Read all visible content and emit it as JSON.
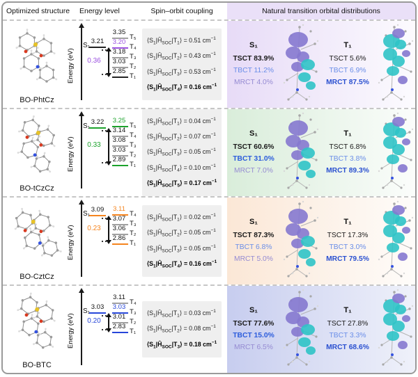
{
  "header": {
    "col_structure": "Optimized structure",
    "col_energy": "Energy level",
    "col_soc": "Spin–orbit coupling",
    "col_nto": "Natural transition orbital distributions"
  },
  "energy_axis_label": "Energy (eV)",
  "formula": {
    "open": "⟨S",
    "s_sub": "1",
    "h": "|Ĥ",
    "op": "SOC",
    "t": "|T",
    "close_eq": "⟩ = ",
    "unit": " cm",
    "exp": "−1"
  },
  "rows": [
    {
      "name": "BO-PhtCz",
      "accent": "#9B51E0",
      "s1_label": "S₁",
      "s1_value": "3.21",
      "s1_line_color": "#222222",
      "s1_align": 1,
      "delta_est": "0.36",
      "t_levels": [
        {
          "label": "T₅",
          "value": "3.35",
          "line_color": "#a0a0a0",
          "value_color": "#111111"
        },
        {
          "label": "T₄",
          "value": "3.20",
          "line_color": "#9B51E0",
          "value_color": "#9B51E0"
        },
        {
          "label": "T₃",
          "value": "3.18",
          "line_color": "#a0a0a0",
          "value_color": "#111111"
        },
        {
          "label": "T₂",
          "value": "3.03",
          "line_color": "#a0a0a0",
          "value_color": "#111111"
        },
        {
          "label": "T₁",
          "value": "2.85",
          "line_color": "#222222",
          "value_color": "#111111"
        }
      ],
      "soc": [
        {
          "t": "1",
          "value": "0.51",
          "bold": false
        },
        {
          "t": "2",
          "value": "0.43",
          "bold": false
        },
        {
          "t": "3",
          "value": "0.53",
          "bold": false
        },
        {
          "t": "4",
          "value": "0.16",
          "bold": true
        }
      ],
      "nto_from": "#E7DBF7",
      "nto_to": "#FCFBFE",
      "nto_s1": {
        "title": "S₁",
        "lines": [
          {
            "text": "TSCT 83.9%",
            "color": "#1a1a1a",
            "bold": true
          },
          {
            "text": "TBCT 11.2%",
            "color": "#6A8EE8",
            "bold": false
          },
          {
            "text": "MRCT 4.0%",
            "color": "#958BD2",
            "bold": false
          }
        ]
      },
      "nto_t1": {
        "title": "T₁",
        "lines": [
          {
            "text": "TSCT 5.6%",
            "color": "#1a1a1a",
            "bold": false
          },
          {
            "text": "TBCT 6.9%",
            "color": "#6A8EE8",
            "bold": false
          },
          {
            "text": "MRCT 87.5%",
            "color": "#2A50D0",
            "bold": true
          }
        ]
      }
    },
    {
      "name": "BO-tCzCz",
      "accent": "#1CA32C",
      "s1_label": "S₁",
      "s1_value": "3.22",
      "s1_line_color": "#1CA32C",
      "s1_align": 0,
      "delta_est": "0.33",
      "t_levels": [
        {
          "label": "T₅",
          "value": "3.25",
          "line_color": "#1CA32C",
          "value_color": "#1CA32C"
        },
        {
          "label": "T₄",
          "value": "3.14",
          "line_color": "#a0a0a0",
          "value_color": "#111111"
        },
        {
          "label": "T₃",
          "value": "3.08",
          "line_color": "#a0a0a0",
          "value_color": "#111111"
        },
        {
          "label": "T₂",
          "value": "3.03",
          "line_color": "#a0a0a0",
          "value_color": "#111111"
        },
        {
          "label": "T₁",
          "value": "2.89",
          "line_color": "#1CA32C",
          "value_color": "#111111"
        }
      ],
      "soc": [
        {
          "t": "1",
          "value": "0.04",
          "bold": false
        },
        {
          "t": "2",
          "value": "0.07",
          "bold": false
        },
        {
          "t": "3",
          "value": "0.05",
          "bold": false
        },
        {
          "t": "4",
          "value": "0.10",
          "bold": false
        },
        {
          "t": "5",
          "value": "0.17",
          "bold": true
        }
      ],
      "nto_from": "#D9EDDA",
      "nto_to": "#FBFDFB",
      "nto_s1": {
        "title": "S₁",
        "lines": [
          {
            "text": "TSCT 60.6%",
            "color": "#1a1a1a",
            "bold": true
          },
          {
            "text": "TBCT 31.0%",
            "color": "#2B5CDC",
            "bold": true
          },
          {
            "text": "MRCT 7.0%",
            "color": "#958BD2",
            "bold": false
          }
        ]
      },
      "nto_t1": {
        "title": "T₁",
        "lines": [
          {
            "text": "TSCT 6.8%",
            "color": "#1a1a1a",
            "bold": false
          },
          {
            "text": "TBCT 3.8%",
            "color": "#6A8EE8",
            "bold": false
          },
          {
            "text": "MRCT 89.3%",
            "color": "#2A50D0",
            "bold": true
          }
        ]
      }
    },
    {
      "name": "BO-CztCz",
      "accent": "#F5841E",
      "s1_label": "S₁",
      "s1_value": "3.09",
      "s1_line_color": "#F5841E",
      "s1_align": 0,
      "delta_est": "0.23",
      "t_levels": [
        {
          "label": "T₄",
          "value": "3.11",
          "line_color": "#F5841E",
          "value_color": "#F5841E"
        },
        {
          "label": "T₃",
          "value": "3.07",
          "line_color": "#a0a0a0",
          "value_color": "#111111"
        },
        {
          "label": "T₂",
          "value": "3.06",
          "line_color": "#a0a0a0",
          "value_color": "#111111"
        },
        {
          "label": "T₁",
          "value": "2.86",
          "line_color": "#F5841E",
          "value_color": "#111111"
        }
      ],
      "soc": [
        {
          "t": "1",
          "value": "0.02",
          "bold": false
        },
        {
          "t": "2",
          "value": "0.05",
          "bold": false
        },
        {
          "t": "3",
          "value": "0.05",
          "bold": false
        },
        {
          "t": "4",
          "value": "0.16",
          "bold": true
        }
      ],
      "nto_from": "#FBE7D6",
      "nto_to": "#FEFCFA",
      "nto_s1": {
        "title": "S₁",
        "lines": [
          {
            "text": "TSCT 87.3%",
            "color": "#1a1a1a",
            "bold": true
          },
          {
            "text": "TBCT 6.8%",
            "color": "#6A8EE8",
            "bold": false
          },
          {
            "text": "MRCT 5.0%",
            "color": "#958BD2",
            "bold": false
          }
        ]
      },
      "nto_t1": {
        "title": "T₁",
        "lines": [
          {
            "text": "TSCT 17.3%",
            "color": "#1a1a1a",
            "bold": false
          },
          {
            "text": "TBCT 3.0%",
            "color": "#6A8EE8",
            "bold": false
          },
          {
            "text": "MRCT 79.5%",
            "color": "#2A50D0",
            "bold": true
          }
        ]
      }
    },
    {
      "name": "BO-BTC",
      "accent": "#2746D9",
      "s1_label": "S₁",
      "s1_value": "3.03",
      "s1_line_color": "#2746D9",
      "s1_align": 1,
      "delta_est": "0.20",
      "t_levels": [
        {
          "label": "T₄",
          "value": "3.11",
          "line_color": "#a0a0a0",
          "value_color": "#111111"
        },
        {
          "label": "T₃",
          "value": "3.03",
          "line_color": "#2746D9",
          "value_color": "#2746D9"
        },
        {
          "label": "T₂",
          "value": "3.01",
          "line_color": "#a0a0a0",
          "value_color": "#111111"
        },
        {
          "label": "T₁",
          "value": "2.83",
          "line_color": "#2746D9",
          "value_color": "#111111"
        }
      ],
      "soc": [
        {
          "t": "1",
          "value": "0.03",
          "bold": false
        },
        {
          "t": "2",
          "value": "0.08",
          "bold": false
        },
        {
          "t": "3",
          "value": "0.18",
          "bold": true
        }
      ],
      "nto_from": "#C7CDEF",
      "nto_to": "#EFF1FA",
      "nto_s1": {
        "title": "S₁",
        "lines": [
          {
            "text": "TSCT 77.6%",
            "color": "#1a1a1a",
            "bold": true
          },
          {
            "text": "TBCT 15.0%",
            "color": "#2B5CDC",
            "bold": true
          },
          {
            "text": "MRCT 6.5%",
            "color": "#958BD2",
            "bold": false
          }
        ]
      },
      "nto_t1": {
        "title": "T₁",
        "lines": [
          {
            "text": "TSCT 27.8%",
            "color": "#1a1a1a",
            "bold": false
          },
          {
            "text": "TBCT 3.3%",
            "color": "#6A8EE8",
            "bold": false
          },
          {
            "text": "MRCT 68.6%",
            "color": "#2A50D0",
            "bold": true
          }
        ]
      }
    }
  ]
}
